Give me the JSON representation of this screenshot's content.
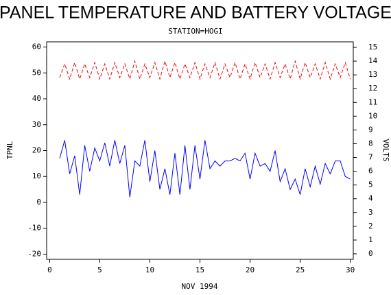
{
  "chart_data": {
    "type": "line",
    "title": "PANEL TEMPERATURE AND BATTERY VOLTAGE",
    "subtitle": "STATION=HOGI",
    "xlabel": "NOV 1994",
    "ylabel": "TPNL",
    "y2label": "VOLTS",
    "x": [
      1,
      1.5,
      2,
      2.5,
      3,
      3.5,
      4,
      4.5,
      5,
      5.5,
      6,
      6.5,
      7,
      7.5,
      8,
      8.5,
      9,
      9.5,
      10,
      10.5,
      11,
      11.5,
      12,
      12.5,
      13,
      13.5,
      14,
      14.5,
      15,
      15.5,
      16,
      16.5,
      17,
      17.5,
      18,
      18.5,
      19,
      19.5,
      20,
      20.5,
      21,
      21.5,
      22,
      22.5,
      23,
      23.5,
      24,
      24.5,
      25,
      25.5,
      26,
      26.5,
      27,
      27.5,
      28,
      28.5,
      29,
      29.5,
      30
    ],
    "series": [
      {
        "name": "TPNL",
        "color": "#0000ff",
        "axis": "y",
        "values": [
          17,
          24,
          11,
          18,
          3,
          22,
          12,
          21,
          16,
          23,
          14,
          24,
          15,
          22,
          2,
          16,
          14,
          24,
          8,
          20,
          5,
          13,
          3,
          19,
          3,
          22,
          5,
          22,
          9,
          24,
          13,
          16,
          14,
          16,
          16,
          17,
          16,
          19,
          9,
          19,
          14,
          15,
          12,
          20,
          8,
          13,
          5,
          9,
          3,
          13,
          6,
          14,
          7,
          15,
          11,
          16,
          16,
          10,
          9
        ]
      },
      {
        "name": "VOLTS",
        "color": "#ff0000",
        "axis": "y2",
        "dashed": true,
        "values": [
          12.8,
          13.8,
          12.7,
          13.9,
          12.7,
          13.8,
          12.8,
          13.9,
          12.7,
          13.8,
          12.7,
          13.9,
          12.8,
          13.8,
          12.7,
          14.0,
          12.7,
          13.8,
          12.8,
          13.9,
          12.7,
          14.0,
          12.8,
          13.9,
          12.7,
          13.8,
          12.8,
          13.9,
          12.7,
          13.8,
          12.8,
          13.9,
          12.7,
          13.8,
          12.8,
          13.9,
          12.7,
          13.8,
          12.7,
          13.9,
          12.8,
          13.8,
          12.7,
          13.9,
          12.8,
          13.8,
          12.7,
          14.0,
          12.7,
          13.9,
          12.8,
          13.8,
          12.7,
          13.9,
          12.7,
          13.8,
          12.8,
          13.9,
          12.7
        ]
      }
    ],
    "xlim": [
      -0.3,
      30.3
    ],
    "xticks": [
      0,
      5,
      10,
      15,
      20,
      25,
      30
    ],
    "ylim": [
      -22,
      62
    ],
    "yticks": [
      -20,
      -10,
      0,
      10,
      20,
      30,
      40,
      50,
      60
    ],
    "y2lim": [
      -0.4,
      15.4
    ],
    "y2ticks": [
      0,
      1,
      2,
      3,
      4,
      5,
      6,
      7,
      8,
      9,
      10,
      11,
      12,
      13,
      14,
      15
    ]
  }
}
